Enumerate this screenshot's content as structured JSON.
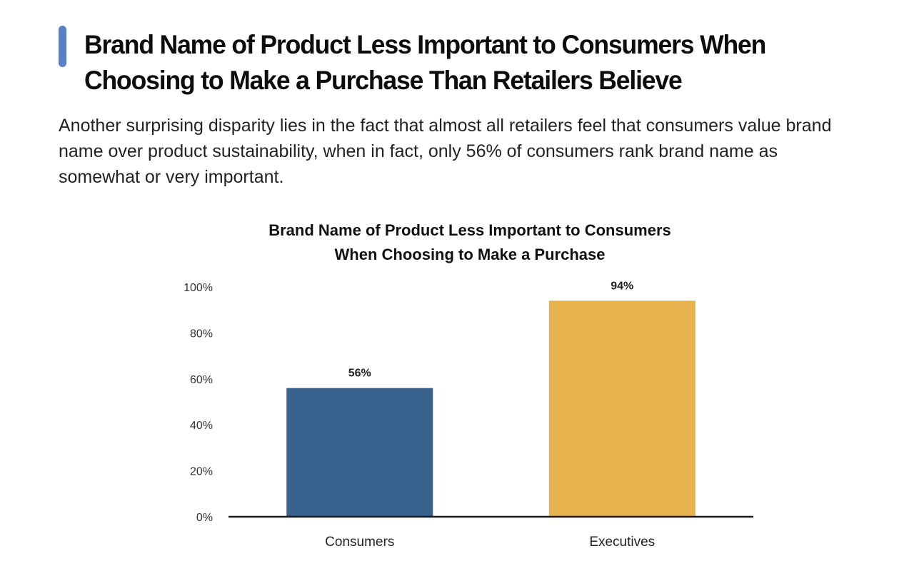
{
  "header": {
    "title": "Brand Name of Product Less Important to Consumers When Choosing to Make a Purchase Than Retailers Believe",
    "accent_color": "#5b7fc4"
  },
  "intro": {
    "text": "Another surprising disparity lies in the fact that almost all retailers feel that consumers value brand name over product sustainability, when in fact, only 56% of consumers rank brand name as somewhat or very important."
  },
  "chart_data": {
    "type": "bar",
    "title_lines": [
      "Brand Name of Product Less Important to Consumers",
      "When Choosing to Make a Purchase"
    ],
    "categories": [
      "Consumers",
      "Executives"
    ],
    "values": [
      56,
      94
    ],
    "data_labels": [
      "56%",
      "94%"
    ],
    "colors": [
      "#3a628f",
      "#e8b24e"
    ],
    "xlabel": "",
    "ylabel": "",
    "ylim": [
      0,
      100
    ],
    "yticks": [
      0,
      20,
      40,
      60,
      80,
      100
    ],
    "ytick_labels": [
      "0%",
      "20%",
      "40%",
      "60%",
      "80%",
      "100%"
    ],
    "grid": false,
    "legend": "none"
  }
}
